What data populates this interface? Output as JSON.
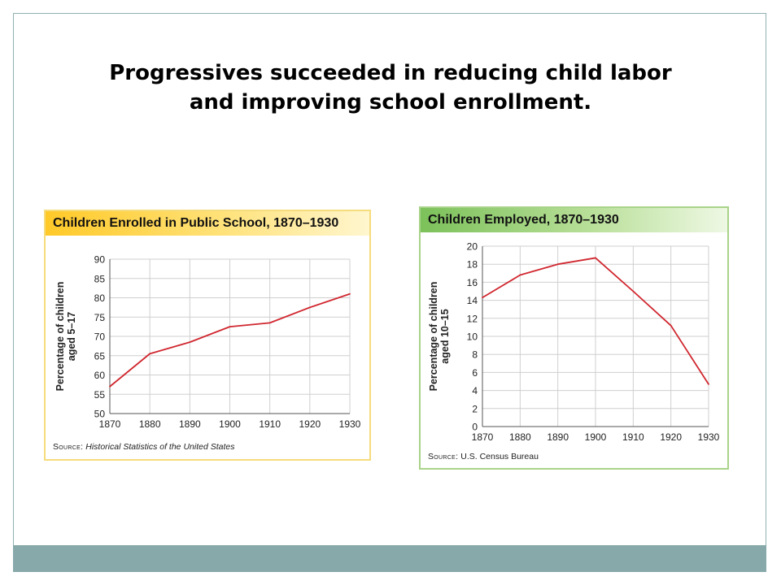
{
  "slide": {
    "title_line1": "Progressives succeeded in reducing child labor",
    "title_line2": "and improving school enrollment."
  },
  "colors": {
    "line": "#d0272f",
    "grid": "#cfcfcf",
    "frame": "#8fb0b0",
    "bar": "#87a9aa"
  },
  "chart_data": [
    {
      "type": "line",
      "title": "Children Enrolled in Public School, 1870–1930",
      "xlabel": "",
      "ylabel": "Percentage of children aged 5–17",
      "ylabel_line1": "Percentage of children",
      "ylabel_line2": "aged 5–17",
      "x": [
        1870,
        1880,
        1890,
        1900,
        1910,
        1920,
        1930
      ],
      "y": [
        57,
        65.5,
        68.5,
        72.5,
        73.5,
        77.5,
        81
      ],
      "xlim": [
        1870,
        1930
      ],
      "ylim": [
        50,
        90
      ],
      "yticks": [
        50,
        55,
        60,
        65,
        70,
        75,
        80,
        85,
        90
      ],
      "xtick_labels": [
        "1870",
        "1880",
        "1890",
        "1900",
        "1910",
        "1920",
        "1930"
      ],
      "grid": true,
      "source_label": "Source:",
      "source_value": "Historical Statistics of the United States"
    },
    {
      "type": "line",
      "title": "Children Employed, 1870–1930",
      "xlabel": "",
      "ylabel": "Percentage of children aged 10–15",
      "ylabel_line1": "Percentage of children",
      "ylabel_line2": "aged 10–15",
      "x": [
        1870,
        1880,
        1890,
        1900,
        1910,
        1920,
        1930
      ],
      "y": [
        14.3,
        16.8,
        18,
        18.7,
        15,
        11.2,
        4.7
      ],
      "xlim": [
        1870,
        1930
      ],
      "ylim": [
        0,
        20
      ],
      "yticks": [
        0,
        2,
        4,
        6,
        8,
        10,
        12,
        14,
        16,
        18,
        20
      ],
      "xtick_labels": [
        "1870",
        "1880",
        "1890",
        "1900",
        "1910",
        "1920",
        "1930"
      ],
      "grid": true,
      "source_label": "Source:",
      "source_value": "U.S. Census Bureau"
    }
  ]
}
